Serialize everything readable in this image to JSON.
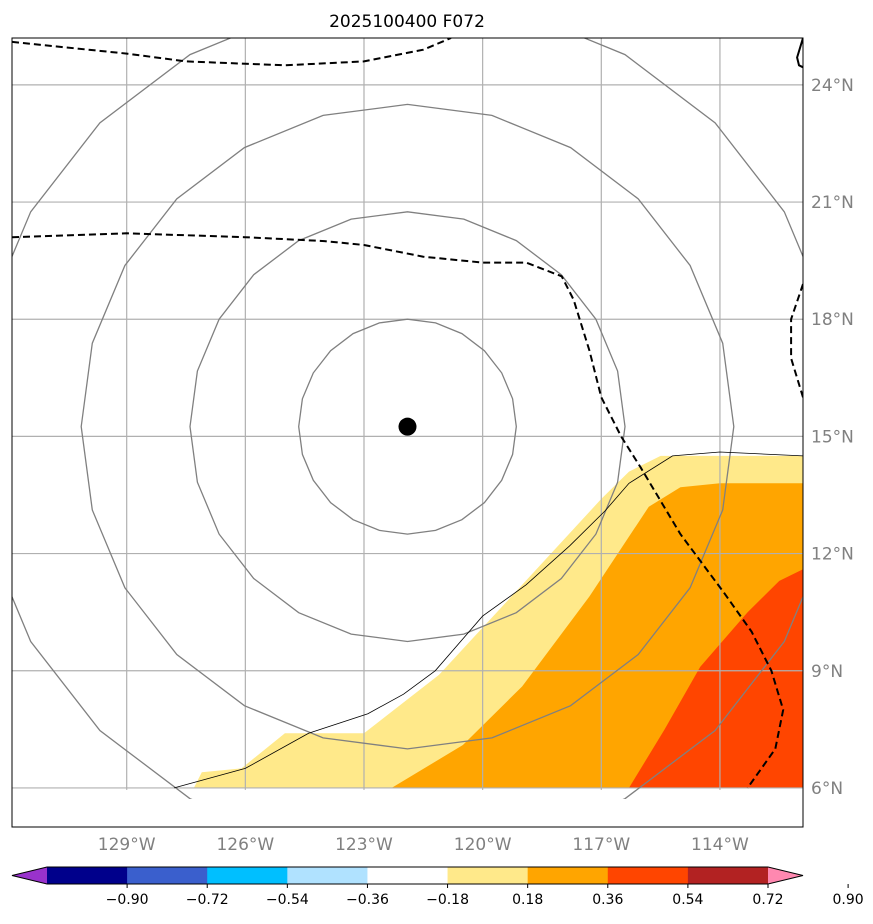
{
  "chart_data": {
    "type": "contour-map",
    "title": "2025100400 F072",
    "projection": "PlateCarree",
    "extent": {
      "lon_min": -131.9,
      "lon_max": -111.9,
      "lat_min": 5.0,
      "lat_max": 25.2
    },
    "map_area": {
      "lon_min": -131.9,
      "lon_max": -111.9,
      "lat_min": 5.95,
      "lat_max": 25.2
    },
    "lon_ticks": [
      -129,
      -126,
      -123,
      -120,
      -117,
      -114
    ],
    "lon_tick_labels": [
      "129°W",
      "126°W",
      "123°W",
      "120°W",
      "117°W",
      "114°W"
    ],
    "lat_ticks": [
      6,
      9,
      12,
      15,
      18,
      21,
      24
    ],
    "lat_tick_labels": [
      "6°N",
      "9°N",
      "12°N",
      "15°N",
      "18°N",
      "21°N",
      "24°N"
    ],
    "gridlines": true,
    "storm_center": {
      "lon": -121.9,
      "lat": 15.25
    },
    "range_rings": [
      {
        "label": "ring-1",
        "radius_deg": 2.75
      },
      {
        "label": "ring-2",
        "radius_deg": 5.5
      },
      {
        "label": "ring-3",
        "radius_deg": 8.25
      },
      {
        "label": "ring-4",
        "radius_deg": 11.0
      }
    ],
    "colorbar": {
      "orientation": "horizontal",
      "extend": "both",
      "levels": [
        -0.9,
        -0.72,
        -0.54,
        -0.36,
        -0.18,
        0.18,
        0.36,
        0.54,
        0.72,
        0.9
      ],
      "tick_labels": [
        "−0.90",
        "−0.72",
        "−0.54",
        "−0.36",
        "−0.18",
        "0.18",
        "0.36",
        "0.54",
        "0.72",
        "0.90"
      ],
      "colors": [
        "#9932cc",
        "#00008b",
        "#3a5fcd",
        "#00bfff",
        "#b0e2ff",
        "#ffffff",
        "#ffe98a",
        "#ffa500",
        "#ff4500",
        "#b22222",
        "#ff88b0"
      ]
    },
    "filled_regions": [
      {
        "name": "region-0.18-0.36",
        "color": "#ffe98a",
        "points": [
          [
            -127.3,
            6
          ],
          [
            -127.1,
            6.4
          ],
          [
            -126.1,
            6.5
          ],
          [
            -125,
            7.4
          ],
          [
            -123,
            7.4
          ],
          [
            -121.1,
            8.9
          ],
          [
            -119,
            11.2
          ],
          [
            -117,
            13.4
          ],
          [
            -116.3,
            14.1
          ],
          [
            -115.5,
            14.5
          ],
          [
            -111.9,
            14.5
          ],
          [
            -111.9,
            6
          ]
        ]
      },
      {
        "name": "region-0.36-0.54",
        "color": "#ffa500",
        "points": [
          [
            -122.3,
            6
          ],
          [
            -120.5,
            7.1
          ],
          [
            -119,
            8.6
          ],
          [
            -117.3,
            10.9
          ],
          [
            -115.8,
            13.2
          ],
          [
            -115,
            13.7
          ],
          [
            -114,
            13.8
          ],
          [
            -111.9,
            13.8
          ],
          [
            -111.9,
            6
          ]
        ]
      },
      {
        "name": "region-0.54-0.72",
        "color": "#ff4500",
        "points": [
          [
            -116.3,
            6
          ],
          [
            -115.4,
            7.5
          ],
          [
            -114.5,
            9.1
          ],
          [
            -113.3,
            10.5
          ],
          [
            -112.5,
            11.3
          ],
          [
            -111.9,
            11.6
          ],
          [
            -111.9,
            6
          ]
        ]
      }
    ],
    "dashed_contours": [
      {
        "name": "dashed-contour-north",
        "points": [
          [
            -131.9,
            25.1
          ],
          [
            -129,
            24.8
          ],
          [
            -127.5,
            24.6
          ],
          [
            -125,
            24.5
          ],
          [
            -123,
            24.6
          ],
          [
            -121.5,
            24.9
          ],
          [
            -120.8,
            25.2
          ]
        ]
      },
      {
        "name": "dashed-contour-mid",
        "points": [
          [
            -131.9,
            20.1
          ],
          [
            -129,
            20.2
          ],
          [
            -126,
            20.1
          ],
          [
            -124,
            20.0
          ],
          [
            -123,
            19.9
          ],
          [
            -121.5,
            19.6
          ],
          [
            -120,
            19.45
          ],
          [
            -118.9,
            19.45
          ],
          [
            -118,
            19.1
          ],
          [
            -117.7,
            18.5
          ],
          [
            -117.3,
            17.2
          ],
          [
            -117,
            16
          ],
          [
            -116.5,
            15
          ],
          [
            -116,
            14.2
          ],
          [
            -115,
            12.5
          ],
          [
            -113.9,
            11
          ],
          [
            -113.2,
            10
          ],
          [
            -112.7,
            9
          ],
          [
            -112.4,
            8
          ],
          [
            -112.6,
            7
          ],
          [
            -113.3,
            6
          ]
        ]
      },
      {
        "name": "dashed-contour-east",
        "points": [
          [
            -111.9,
            18.9
          ],
          [
            -112.2,
            18.0
          ],
          [
            -112.2,
            17.0
          ],
          [
            -111.9,
            16.0
          ]
        ]
      }
    ],
    "coastlines": [
      {
        "name": "coast-line-a",
        "points": [
          [
            -127.8,
            6
          ],
          [
            -126,
            6.5
          ],
          [
            -124.4,
            7.4
          ],
          [
            -122.9,
            7.9
          ],
          [
            -122,
            8.4
          ],
          [
            -121.2,
            9
          ],
          [
            -120,
            10.4
          ],
          [
            -118.9,
            11.2
          ],
          [
            -117.8,
            12.2
          ],
          [
            -116.9,
            13.1
          ],
          [
            -116.3,
            13.8
          ],
          [
            -115.2,
            14.5
          ],
          [
            -114,
            14.6
          ],
          [
            -111.9,
            14.5
          ]
        ]
      },
      {
        "name": "coast-line-b",
        "points": [
          [
            -111.9,
            25.2
          ],
          [
            -112.05,
            24.7
          ],
          [
            -112.0,
            24.5
          ],
          [
            -111.9,
            24.45
          ]
        ]
      }
    ]
  }
}
